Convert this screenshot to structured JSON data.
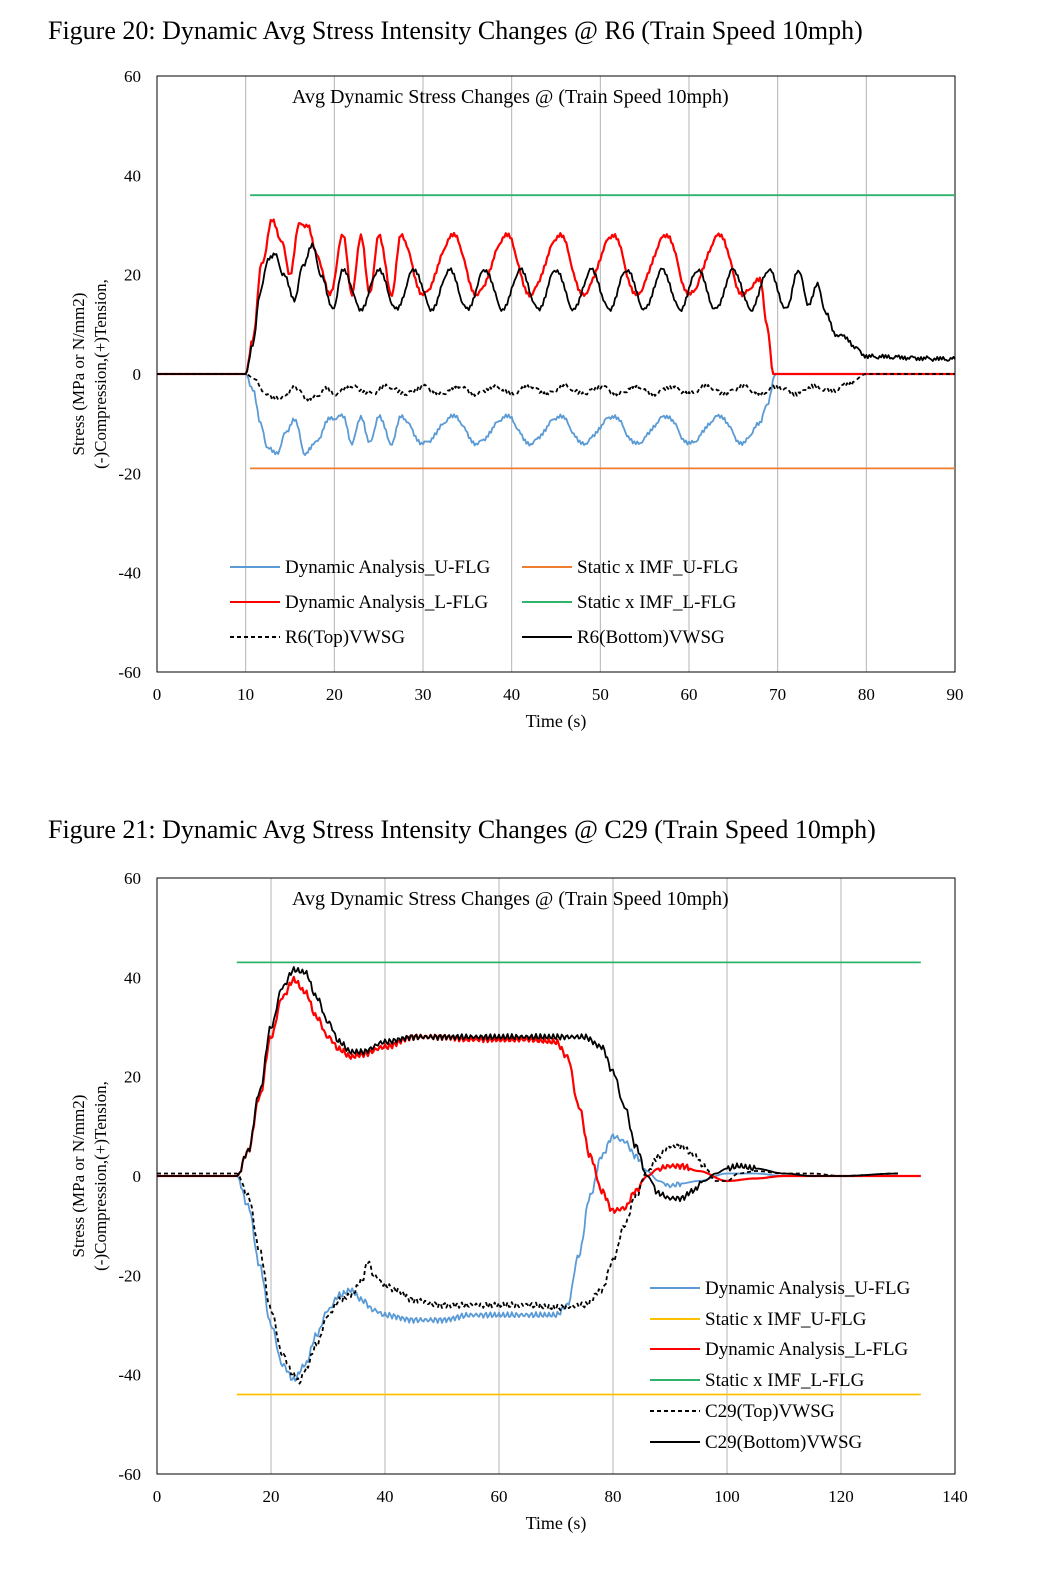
{
  "figures": [
    {
      "caption": "Figure 20: Dynamic Avg Stress Intensity Changes @ R6 (Train Speed 10mph)"
    },
    {
      "caption": "Figure 21: Dynamic Avg Stress Intensity Changes @ C29 (Train Speed 10mph)"
    }
  ],
  "chart_data": [
    {
      "type": "line",
      "title": "Avg Dynamic Stress Changes @ (Train Speed 10mph)",
      "xlabel": "Time (s)",
      "ylabel_lines": [
        "Stress (MPa or N/mm2)",
        "(-)Compression,(+)Tension,"
      ],
      "xlim": [
        0,
        90
      ],
      "ylim": [
        -60,
        60
      ],
      "xticks": [
        0,
        10,
        20,
        30,
        40,
        50,
        60,
        70,
        80,
        90
      ],
      "yticks": [
        -60,
        -40,
        -20,
        0,
        20,
        40,
        60
      ],
      "grid": "vertical",
      "legend_placement": "lower-center",
      "legend_columns": 2,
      "series": [
        {
          "name": "Dynamic Analysis_U-FLG",
          "color": "#5b9bd5",
          "style": "solid",
          "x": [
            0,
            10,
            10.8,
            11.7,
            12.5,
            13.5,
            14.5,
            15.5,
            16.7,
            17.8,
            19.5,
            21,
            22,
            23,
            24,
            25,
            26.5,
            27.5,
            30,
            33.5,
            36,
            39.5,
            42,
            45.5,
            48,
            51.5,
            54,
            57.5,
            60,
            63.5,
            66,
            68,
            68.8,
            69.8,
            90
          ],
          "y": [
            0,
            0,
            -3,
            -10,
            -15,
            -16,
            -12,
            -9,
            -16,
            -14,
            -9,
            -8.5,
            -14,
            -8.5,
            -14,
            -8.5,
            -14,
            -8.5,
            -14,
            -8.5,
            -14,
            -8.5,
            -14,
            -8.5,
            -14,
            -8.5,
            -14,
            -8.5,
            -14,
            -8.5,
            -14,
            -10,
            -6,
            0,
            0
          ]
        },
        {
          "name": "Static x IMF_U-FLG",
          "color": "#ed7d31",
          "style": "solid",
          "x": [
            10.5,
            90
          ],
          "y": [
            -19,
            -19
          ]
        },
        {
          "name": "Dynamic Analysis_L-FLG",
          "color": "#ff0000",
          "style": "solid",
          "x": [
            0,
            10,
            10.8,
            11.8,
            13,
            14,
            15,
            16,
            17,
            18,
            19.5,
            21,
            22,
            23,
            24,
            25,
            26.5,
            27.5,
            30,
            33.5,
            36,
            39.5,
            42,
            45.5,
            48,
            51.5,
            54,
            57.5,
            60,
            63.5,
            66,
            68,
            68.8,
            69.5,
            90
          ],
          "y": [
            0,
            0,
            7,
            22,
            31,
            27,
            20,
            30,
            30,
            24,
            16,
            28,
            16,
            28,
            16,
            28,
            16,
            28,
            16,
            28,
            16,
            28,
            16,
            28,
            16,
            28,
            16,
            28,
            16,
            28,
            16,
            19,
            10,
            0,
            0
          ]
        },
        {
          "name": "Static x IMF_L-FLG",
          "color": "#2db36a",
          "style": "solid",
          "x": [
            10.5,
            90
          ],
          "y": [
            36,
            36
          ]
        },
        {
          "name": "R6(Top)VWSG",
          "color": "#000000",
          "style": "dashed",
          "x": [
            0,
            10,
            11,
            12,
            13,
            14.5,
            15.5,
            16,
            17,
            18,
            19,
            20,
            22,
            24,
            26,
            28,
            30,
            32,
            34,
            36,
            38,
            40,
            42,
            44,
            46,
            48,
            50,
            52,
            54,
            56,
            58,
            60,
            62,
            64,
            66,
            68,
            70,
            72,
            74,
            76,
            78,
            80,
            90
          ],
          "y": [
            0,
            0,
            -1,
            -3.5,
            -5,
            -4.5,
            -2.5,
            -3.5,
            -5,
            -4.5,
            -3,
            -4,
            -2.5,
            -4,
            -2.5,
            -4,
            -2.5,
            -4,
            -2.5,
            -4,
            -2.5,
            -4,
            -2.5,
            -4,
            -2.5,
            -4,
            -2.5,
            -4,
            -2.5,
            -4,
            -2.5,
            -4,
            -2.5,
            -4,
            -2.5,
            -4,
            -2.5,
            -4,
            -2.5,
            -3.5,
            -2,
            0,
            0
          ]
        },
        {
          "name": "R6(Bottom)VWSG",
          "color": "#000000",
          "style": "solid",
          "x": [
            0,
            10,
            10.8,
            11.6,
            12.5,
            13.3,
            14.3,
            15.5,
            16.5,
            17.5,
            18.5,
            19.8,
            21,
            23,
            25,
            27,
            29,
            31,
            33,
            35,
            37,
            39,
            41,
            43,
            45,
            47,
            49,
            51,
            53,
            55,
            57,
            59,
            61,
            63,
            65,
            67,
            69,
            71,
            72.3,
            73.5,
            74.5,
            75.5,
            76.5,
            77.5,
            79,
            80,
            90
          ],
          "y": [
            0,
            0,
            6,
            16,
            23,
            24,
            20,
            15,
            22,
            26,
            20,
            13,
            21,
            13,
            21,
            13,
            21,
            13,
            21,
            13,
            21,
            13,
            21,
            13,
            21,
            13,
            21,
            13,
            21,
            13,
            21,
            13,
            21,
            13,
            21,
            13,
            21,
            13,
            21,
            14,
            18,
            12,
            8,
            7.5,
            5,
            3.5,
            3
          ]
        }
      ]
    },
    {
      "type": "line",
      "title": "Avg Dynamic Stress Changes @ (Train Speed 10mph)",
      "xlabel": "Time (s)",
      "ylabel_lines": [
        "Stress (MPa or N/mm2)",
        "(-)Compression,(+)Tension,"
      ],
      "xlim": [
        0,
        140
      ],
      "ylim": [
        -60,
        60
      ],
      "xticks": [
        0,
        20,
        40,
        60,
        80,
        100,
        120,
        140
      ],
      "yticks": [
        -60,
        -40,
        -20,
        0,
        20,
        40,
        60
      ],
      "grid": "vertical",
      "legend_placement": "lower-right",
      "legend_columns": 1,
      "series": [
        {
          "name": "Dynamic Analysis_U-FLG",
          "color": "#5b9bd5",
          "style": "solid",
          "x": [
            0,
            14,
            16,
            18,
            20,
            22,
            24,
            26,
            28,
            30,
            32,
            34,
            36,
            38,
            40,
            45,
            50,
            55,
            60,
            65,
            70,
            72,
            74,
            76,
            78,
            80,
            82,
            84,
            86,
            88,
            90,
            92,
            95,
            100,
            105,
            110,
            115,
            134
          ],
          "y": [
            0,
            0,
            -6,
            -18,
            -30,
            -38,
            -41,
            -38,
            -32,
            -27,
            -24,
            -23,
            -25,
            -27,
            -28,
            -29,
            -29,
            -28,
            -28,
            -28,
            -28,
            -26,
            -16,
            -4,
            4,
            8,
            7,
            4,
            1,
            -1,
            -2,
            -1.5,
            -1,
            0.5,
            0.5,
            0,
            0,
            0
          ]
        },
        {
          "name": "Static x IMF_U-FLG",
          "color": "#ffc000",
          "style": "solid",
          "x": [
            14,
            134
          ],
          "y": [
            -44,
            -44
          ]
        },
        {
          "name": "Dynamic Analysis_L-FLG",
          "color": "#ff0000",
          "style": "solid",
          "x": [
            0,
            14,
            16,
            18,
            20,
            22,
            24,
            26,
            28,
            30,
            32,
            34,
            36,
            40,
            45,
            50,
            55,
            60,
            65,
            70,
            72,
            74,
            76,
            78,
            80,
            82,
            84,
            86,
            88,
            90,
            92,
            95,
            100,
            105,
            110,
            115,
            134
          ],
          "y": [
            0,
            0,
            5,
            16,
            28,
            36,
            39.5,
            37,
            32,
            28,
            25.5,
            24,
            24.5,
            26,
            28,
            28,
            27.5,
            27.5,
            27.5,
            27,
            24,
            14,
            4,
            -3,
            -7,
            -6.5,
            -3,
            0,
            1.5,
            2,
            2,
            1,
            -1,
            -0.5,
            0,
            0,
            0
          ]
        },
        {
          "name": "Static x IMF_L-FLG",
          "color": "#2db36a",
          "style": "solid",
          "x": [
            14,
            134
          ],
          "y": [
            43,
            43
          ]
        },
        {
          "name": "C29(Top)VWSG",
          "color": "#000000",
          "style": "dashed",
          "x": [
            0,
            14,
            16,
            18,
            20,
            22,
            24,
            25,
            26,
            28,
            30,
            32,
            34,
            36,
            37,
            38,
            40,
            42,
            45,
            50,
            55,
            60,
            65,
            70,
            75,
            78,
            80,
            82,
            84,
            86,
            88,
            90,
            92,
            94,
            96,
            98,
            100,
            102,
            105,
            110,
            115,
            120,
            130
          ],
          "y": [
            0.5,
            0.5,
            -4,
            -15,
            -27,
            -36,
            -40,
            -41.5,
            -39,
            -34,
            -28,
            -25,
            -24,
            -21,
            -17,
            -20,
            -22,
            -23,
            -25,
            -26,
            -26,
            -26,
            -26,
            -26.5,
            -26,
            -23,
            -17,
            -10,
            -4,
            1,
            4,
            6,
            6,
            4.5,
            2,
            -1,
            -1,
            0.5,
            1,
            0.5,
            0.5,
            0,
            0.5
          ]
        },
        {
          "name": "C29(Bottom)VWSG",
          "color": "#000000",
          "style": "solid",
          "x": [
            0,
            14,
            16,
            18,
            20,
            22,
            24,
            26,
            28,
            30,
            32,
            34,
            36,
            40,
            45,
            50,
            55,
            60,
            65,
            70,
            75,
            78,
            80,
            82,
            84,
            86,
            88,
            90,
            92,
            94,
            96,
            98,
            100,
            102,
            105,
            110,
            115,
            120,
            130
          ],
          "y": [
            0,
            0,
            5,
            17,
            30,
            38,
            41.5,
            41,
            36,
            31,
            27,
            25,
            25,
            27,
            28,
            28,
            28,
            28,
            28,
            28,
            28,
            26,
            21,
            14,
            6,
            0,
            -3.5,
            -4.5,
            -4.5,
            -3,
            -1,
            0.5,
            1.5,
            2,
            1.5,
            0.5,
            0,
            0,
            0.5
          ]
        }
      ]
    }
  ]
}
